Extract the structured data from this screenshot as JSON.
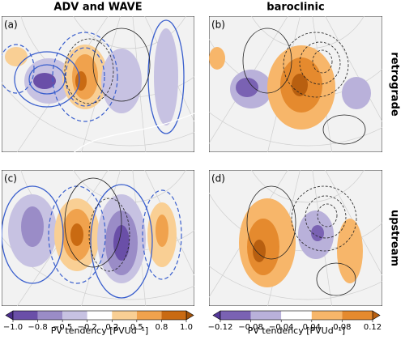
{
  "columns": [
    "ADV and WAVE",
    "baroclinic"
  ],
  "rows": [
    "retrograde",
    "upstream"
  ],
  "panels": [
    "(a)",
    "(b)",
    "(c)",
    "(d)"
  ],
  "colorbars": [
    {
      "label": "PV tendency [PVUd⁻¹]",
      "ticks": [
        {
          "value": -1.0,
          "label": "−1.0"
        },
        {
          "value": -0.8,
          "label": "−0.8"
        },
        {
          "value": -0.5,
          "label": "−0.5"
        },
        {
          "value": -0.2,
          "label": "−0.2"
        },
        {
          "value": 0.2,
          "label": "0.2"
        },
        {
          "value": 0.5,
          "label": "0.5"
        },
        {
          "value": 0.8,
          "label": "0.8"
        },
        {
          "value": 1.0,
          "label": "1.0"
        }
      ],
      "colors": [
        "#6a4fa8",
        "#9a8cc7",
        "#c7c2e2",
        "#ffffff",
        "#f9cf94",
        "#f0a24d",
        "#c96a12"
      ],
      "extend_colors": [
        "#4b2e8c",
        "#a0520b"
      ]
    },
    {
      "label": "PV tendency [PVUd⁻¹]",
      "ticks": [
        {
          "value": -0.12,
          "label": "−0.12"
        },
        {
          "value": -0.08,
          "label": "−0.08"
        },
        {
          "value": -0.04,
          "label": "−0.04"
        },
        {
          "value": 0.04,
          "label": "0.04"
        },
        {
          "value": 0.08,
          "label": "0.08"
        },
        {
          "value": 0.12,
          "label": "0.12"
        }
      ],
      "colors": [
        "#7a62b3",
        "#b9b1da",
        "#ffffff",
        "#f7b66a",
        "#e58a2e"
      ],
      "extend_colors": [
        "#55389a",
        "#b85f10"
      ]
    }
  ]
}
